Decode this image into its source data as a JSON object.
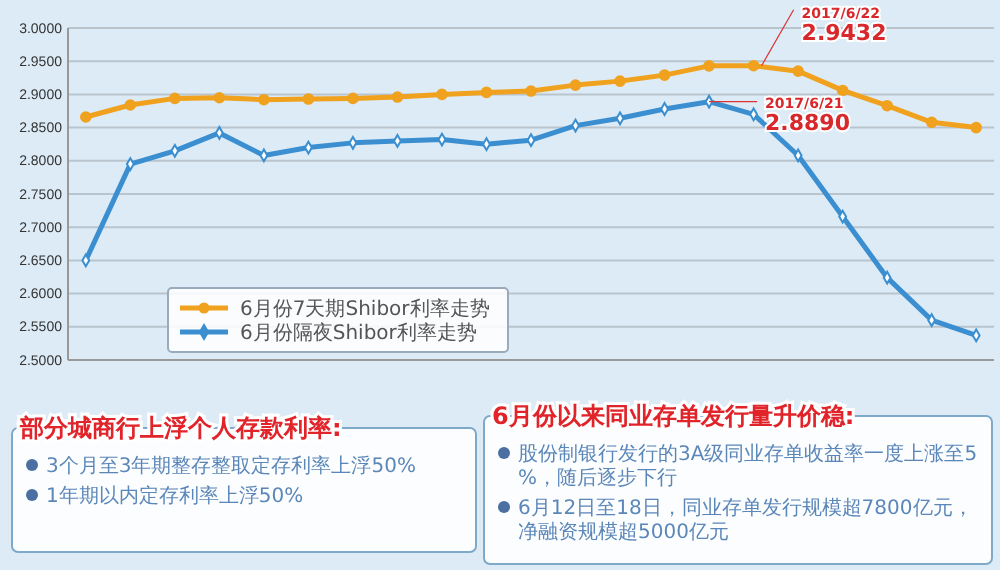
{
  "chart_data": [
    {
      "type": "line",
      "categories": [
        null,
        null,
        null,
        null,
        null,
        null,
        null,
        null,
        null,
        null,
        null,
        null,
        null,
        null,
        null,
        null,
        null,
        null,
        null,
        null,
        null
      ],
      "series": [
        {
          "name": "6月份7天期Shibor利率走势",
          "color": "#f0a11e",
          "marker": "circle",
          "values": [
            2.866,
            2.884,
            2.894,
            2.895,
            2.892,
            2.893,
            2.894,
            2.896,
            2.9,
            2.903,
            2.905,
            2.914,
            2.92,
            2.929,
            2.943,
            2.9432,
            2.935,
            2.906,
            2.883,
            2.858,
            2.85
          ]
        },
        {
          "name": "6月份隔夜Shibor利率走势",
          "color": "#3b8fd0",
          "marker": "diamond",
          "values": [
            2.65,
            2.795,
            2.815,
            2.842,
            2.808,
            2.82,
            2.827,
            2.83,
            2.832,
            2.825,
            2.831,
            2.853,
            2.864,
            2.878,
            2.889,
            2.87,
            2.808,
            2.716,
            2.624,
            2.56,
            2.537
          ]
        }
      ],
      "ylim": [
        2.5,
        3.0
      ],
      "yticks": [
        {
          "value": 2.5,
          "label": "2.5000"
        },
        {
          "value": 2.55,
          "label": "2.5500"
        },
        {
          "value": 2.6,
          "label": "2.6000"
        },
        {
          "value": 2.65,
          "label": "2.6500"
        },
        {
          "value": 2.7,
          "label": "2.7000"
        },
        {
          "value": 2.75,
          "label": "2.7500"
        },
        {
          "value": 2.8,
          "label": "2.8000"
        },
        {
          "value": 2.85,
          "label": "2.8500"
        },
        {
          "value": 2.9,
          "label": "2.9000"
        },
        {
          "value": 2.95,
          "label": "2.9500"
        },
        {
          "value": 3.0,
          "label": "3.0000"
        }
      ],
      "tick_labels": "y",
      "grid": "y",
      "legend": "bottom left",
      "line_style": "solid",
      "annotations": [
        "2017/6/22\n2.9432",
        "2017/6/21\n2.8890"
      ]
    },
    {
      "type": "other",
      "title": "部分城商行上浮个人存款利率:",
      "annotations": [
        "3个月至3年期整存整取定存利率上浮50%",
        "1年期以内定存利率上浮50%"
      ]
    },
    {
      "type": "other",
      "title": "6月份以来同业存单发行量升价稳:",
      "annotations": [
        "股份制银行发行的3A级同业存单收益率一度上涨至5%，随后逐步下行",
        "6月12日至18日，同业存单发行规模超7800亿元，净融资规模超5000亿元"
      ]
    }
  ]
}
